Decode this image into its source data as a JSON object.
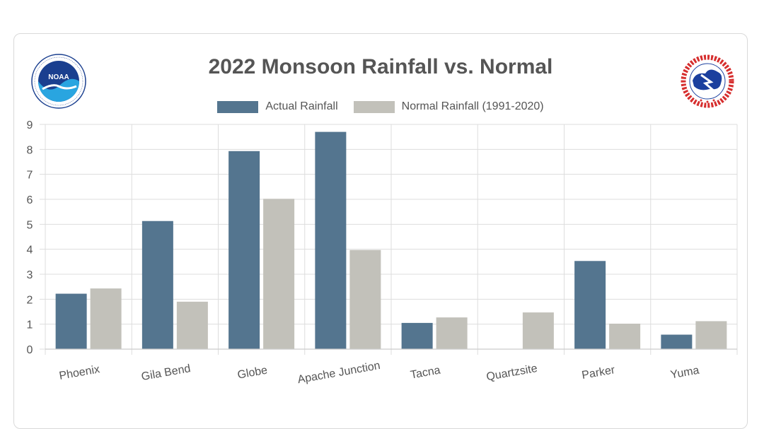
{
  "colors": {
    "actual": "#54758f",
    "normal": "#c2c1ba",
    "grid": "#dddddd",
    "text": "#555555"
  },
  "logos": {
    "noaa": {
      "name": "noaa-logo",
      "text": "NOAA",
      "ring_text": "NATIONAL OCEANIC AND ATMOSPHERIC ADMINISTRATION · U.S. DEPARTMENT OF COMMERCE"
    },
    "nws": {
      "name": "national-weather-service-logo",
      "ring_text": "NATIONAL WEATHER SERVICE"
    }
  },
  "chart_data": {
    "type": "bar",
    "title": "2022 Monsoon Rainfall vs. Normal",
    "categories": [
      "Phoenix",
      "Gila Bend",
      "Globe",
      "Apache Junction",
      "Tacna",
      "Quartzsite",
      "Parker",
      "Yuma"
    ],
    "series": [
      {
        "name": "Actual Rainfall",
        "values": [
          2.22,
          5.13,
          7.93,
          8.7,
          1.05,
          0,
          3.53,
          0.58
        ]
      },
      {
        "name": "Normal Rainfall (1991-2020)",
        "values": [
          2.43,
          1.9,
          6.02,
          3.97,
          1.27,
          1.47,
          1.02,
          1.12
        ]
      }
    ],
    "ylim": [
      0,
      9
    ],
    "yticks": [
      "0",
      "1",
      "2",
      "3",
      "4",
      "5",
      "6",
      "7",
      "8",
      "9"
    ],
    "grid": true,
    "legend_position": "top-center"
  }
}
